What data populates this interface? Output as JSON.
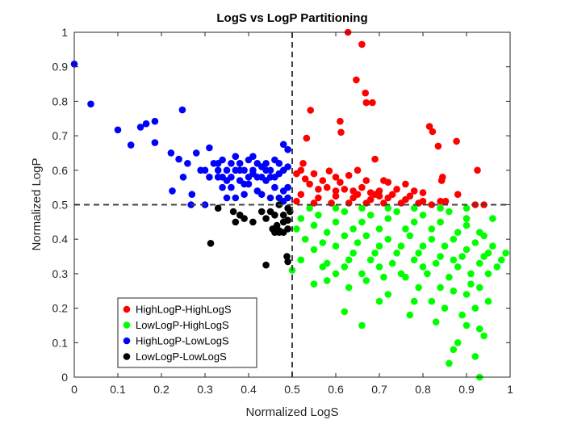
{
  "chart_data": {
    "type": "scatter",
    "title": "LogS vs LogP Partitioning",
    "xlabel": "Normalized LogS",
    "ylabel": "Normalized LogP",
    "xlim": [
      0,
      1
    ],
    "ylim": [
      0,
      1
    ],
    "xticks": [
      "0",
      "0.1",
      "0.2",
      "0.3",
      "0.4",
      "0.5",
      "0.6",
      "0.7",
      "0.8",
      "0.9",
      "1"
    ],
    "yticks": [
      "0",
      "0.1",
      "0.2",
      "0.3",
      "0.4",
      "0.5",
      "0.6",
      "0.7",
      "0.8",
      "0.9",
      "1"
    ],
    "grid": false,
    "thresholds": {
      "x": 0.5,
      "y": 0.5
    },
    "legend_position": "bottom-left",
    "series": [
      {
        "name": "HighLogP-HighLogS",
        "color": "#ff0000",
        "points": [
          [
            0.628,
            1.0
          ],
          [
            0.66,
            0.965
          ],
          [
            0.647,
            0.862
          ],
          [
            0.668,
            0.824
          ],
          [
            0.67,
            0.796
          ],
          [
            0.684,
            0.796
          ],
          [
            0.542,
            0.774
          ],
          [
            0.61,
            0.742
          ],
          [
            0.815,
            0.727
          ],
          [
            0.612,
            0.71
          ],
          [
            0.822,
            0.712
          ],
          [
            0.877,
            0.684
          ],
          [
            0.533,
            0.693
          ],
          [
            0.835,
            0.67
          ],
          [
            0.69,
            0.632
          ],
          [
            0.525,
            0.62
          ],
          [
            0.925,
            0.6
          ],
          [
            0.845,
            0.58
          ],
          [
            0.843,
            0.57
          ],
          [
            0.65,
            0.6
          ],
          [
            0.585,
            0.598
          ],
          [
            0.71,
            0.57
          ],
          [
            0.76,
            0.56
          ],
          [
            0.8,
            0.535
          ],
          [
            0.88,
            0.53
          ],
          [
            0.92,
            0.5
          ],
          [
            0.94,
            0.5
          ],
          [
            0.852,
            0.51
          ],
          [
            0.82,
            0.5
          ],
          [
            0.52,
            0.6
          ],
          [
            0.55,
            0.59
          ],
          [
            0.6,
            0.58
          ],
          [
            0.63,
            0.585
          ],
          [
            0.67,
            0.57
          ],
          [
            0.72,
            0.565
          ],
          [
            0.54,
            0.56
          ],
          [
            0.58,
            0.55
          ],
          [
            0.62,
            0.545
          ],
          [
            0.66,
            0.55
          ],
          [
            0.7,
            0.54
          ],
          [
            0.74,
            0.545
          ],
          [
            0.78,
            0.54
          ],
          [
            0.52,
            0.53
          ],
          [
            0.56,
            0.52
          ],
          [
            0.6,
            0.525
          ],
          [
            0.64,
            0.52
          ],
          [
            0.68,
            0.515
          ],
          [
            0.72,
            0.52
          ],
          [
            0.76,
            0.515
          ],
          [
            0.8,
            0.51
          ],
          [
            0.84,
            0.51
          ],
          [
            0.51,
            0.51
          ],
          [
            0.55,
            0.505
          ],
          [
            0.59,
            0.505
          ],
          [
            0.63,
            0.505
          ],
          [
            0.67,
            0.505
          ],
          [
            0.71,
            0.505
          ],
          [
            0.75,
            0.505
          ],
          [
            0.79,
            0.505
          ],
          [
            0.53,
            0.575
          ],
          [
            0.57,
            0.57
          ],
          [
            0.61,
            0.565
          ],
          [
            0.65,
            0.53
          ],
          [
            0.69,
            0.53
          ],
          [
            0.73,
            0.53
          ],
          [
            0.77,
            0.525
          ],
          [
            0.51,
            0.59
          ],
          [
            0.56,
            0.545
          ],
          [
            0.6,
            0.54
          ],
          [
            0.64,
            0.54
          ],
          [
            0.68,
            0.535
          ],
          [
            0.7,
            0.525
          ]
        ]
      },
      {
        "name": "LowLogP-HighLogS",
        "color": "#00ff00",
        "points": [
          [
            0.93,
            0.0
          ],
          [
            0.86,
            0.04
          ],
          [
            0.92,
            0.06
          ],
          [
            0.88,
            0.1
          ],
          [
            0.94,
            0.12
          ],
          [
            0.9,
            0.15
          ],
          [
            0.83,
            0.16
          ],
          [
            0.77,
            0.18
          ],
          [
            0.85,
            0.2
          ],
          [
            0.66,
            0.15
          ],
          [
            0.62,
            0.19
          ],
          [
            0.7,
            0.22
          ],
          [
            0.55,
            0.27
          ],
          [
            0.5,
            0.31
          ],
          [
            0.52,
            0.34
          ],
          [
            0.57,
            0.32
          ],
          [
            0.6,
            0.3
          ],
          [
            0.63,
            0.26
          ],
          [
            0.67,
            0.28
          ],
          [
            0.72,
            0.24
          ],
          [
            0.75,
            0.3
          ],
          [
            0.79,
            0.26
          ],
          [
            0.82,
            0.22
          ],
          [
            0.87,
            0.25
          ],
          [
            0.91,
            0.27
          ],
          [
            0.95,
            0.3
          ],
          [
            0.98,
            0.34
          ],
          [
            0.99,
            0.36
          ],
          [
            0.96,
            0.38
          ],
          [
            0.93,
            0.42
          ],
          [
            0.9,
            0.46
          ],
          [
            0.86,
            0.48
          ],
          [
            0.8,
            0.47
          ],
          [
            0.74,
            0.48
          ],
          [
            0.68,
            0.47
          ],
          [
            0.62,
            0.48
          ],
          [
            0.56,
            0.47
          ],
          [
            0.52,
            0.46
          ],
          [
            0.51,
            0.43
          ],
          [
            0.53,
            0.4
          ],
          [
            0.58,
            0.42
          ],
          [
            0.64,
            0.43
          ],
          [
            0.7,
            0.43
          ],
          [
            0.76,
            0.43
          ],
          [
            0.82,
            0.43
          ],
          [
            0.88,
            0.42
          ],
          [
            0.94,
            0.41
          ],
          [
            0.55,
            0.37
          ],
          [
            0.6,
            0.38
          ],
          [
            0.65,
            0.39
          ],
          [
            0.7,
            0.38
          ],
          [
            0.75,
            0.38
          ],
          [
            0.8,
            0.38
          ],
          [
            0.85,
            0.38
          ],
          [
            0.9,
            0.37
          ],
          [
            0.95,
            0.36
          ],
          [
            0.58,
            0.33
          ],
          [
            0.63,
            0.34
          ],
          [
            0.68,
            0.34
          ],
          [
            0.73,
            0.33
          ],
          [
            0.78,
            0.34
          ],
          [
            0.83,
            0.33
          ],
          [
            0.88,
            0.32
          ],
          [
            0.93,
            0.33
          ],
          [
            0.66,
            0.3
          ],
          [
            0.71,
            0.29
          ],
          [
            0.76,
            0.29
          ],
          [
            0.81,
            0.3
          ],
          [
            0.86,
            0.29
          ],
          [
            0.91,
            0.3
          ],
          [
            0.78,
            0.22
          ],
          [
            0.84,
            0.26
          ],
          [
            0.9,
            0.24
          ],
          [
            0.92,
            0.2
          ],
          [
            0.55,
            0.44
          ],
          [
            0.6,
            0.45
          ],
          [
            0.66,
            0.45
          ],
          [
            0.72,
            0.46
          ],
          [
            0.78,
            0.45
          ],
          [
            0.84,
            0.45
          ],
          [
            0.9,
            0.44
          ],
          [
            0.57,
            0.39
          ],
          [
            0.62,
            0.41
          ],
          [
            0.67,
            0.41
          ],
          [
            0.72,
            0.4
          ],
          [
            0.77,
            0.41
          ],
          [
            0.82,
            0.4
          ],
          [
            0.87,
            0.4
          ],
          [
            0.92,
            0.39
          ],
          [
            0.54,
            0.49
          ],
          [
            0.6,
            0.49
          ],
          [
            0.66,
            0.49
          ],
          [
            0.72,
            0.49
          ],
          [
            0.78,
            0.49
          ],
          [
            0.84,
            0.49
          ],
          [
            0.9,
            0.49
          ],
          [
            0.96,
            0.46
          ],
          [
            0.97,
            0.32
          ],
          [
            0.58,
            0.28
          ],
          [
            0.64,
            0.36
          ],
          [
            0.69,
            0.36
          ],
          [
            0.74,
            0.36
          ],
          [
            0.79,
            0.36
          ],
          [
            0.84,
            0.35
          ],
          [
            0.89,
            0.35
          ],
          [
            0.94,
            0.35
          ],
          [
            0.62,
            0.32
          ],
          [
            0.7,
            0.32
          ],
          [
            0.8,
            0.32
          ],
          [
            0.87,
            0.34
          ],
          [
            0.93,
            0.26
          ],
          [
            0.95,
            0.22
          ],
          [
            0.89,
            0.18
          ],
          [
            0.87,
            0.08
          ],
          [
            0.93,
            0.14
          ]
        ]
      },
      {
        "name": "HighLogP-LowLogS",
        "color": "#0000ff",
        "points": [
          [
            0.0,
            0.908
          ],
          [
            0.038,
            0.792
          ],
          [
            0.1,
            0.717
          ],
          [
            0.13,
            0.673
          ],
          [
            0.152,
            0.725
          ],
          [
            0.165,
            0.735
          ],
          [
            0.185,
            0.742
          ],
          [
            0.185,
            0.68
          ],
          [
            0.248,
            0.775
          ],
          [
            0.222,
            0.65
          ],
          [
            0.24,
            0.632
          ],
          [
            0.25,
            0.58
          ],
          [
            0.225,
            0.54
          ],
          [
            0.268,
            0.5
          ],
          [
            0.3,
            0.6
          ],
          [
            0.31,
            0.665
          ],
          [
            0.33,
            0.58
          ],
          [
            0.34,
            0.63
          ],
          [
            0.35,
            0.6
          ],
          [
            0.36,
            0.55
          ],
          [
            0.37,
            0.52
          ],
          [
            0.38,
            0.6
          ],
          [
            0.39,
            0.56
          ],
          [
            0.4,
            0.63
          ],
          [
            0.41,
            0.59
          ],
          [
            0.42,
            0.54
          ],
          [
            0.43,
            0.61
          ],
          [
            0.44,
            0.57
          ],
          [
            0.45,
            0.52
          ],
          [
            0.46,
            0.63
          ],
          [
            0.47,
            0.59
          ],
          [
            0.48,
            0.54
          ],
          [
            0.49,
            0.61
          ],
          [
            0.49,
            0.66
          ],
          [
            0.48,
            0.675
          ],
          [
            0.46,
            0.55
          ],
          [
            0.45,
            0.58
          ],
          [
            0.44,
            0.6
          ],
          [
            0.43,
            0.53
          ],
          [
            0.42,
            0.58
          ],
          [
            0.41,
            0.64
          ],
          [
            0.4,
            0.56
          ],
          [
            0.39,
            0.53
          ],
          [
            0.38,
            0.57
          ],
          [
            0.37,
            0.64
          ],
          [
            0.36,
            0.58
          ],
          [
            0.35,
            0.52
          ],
          [
            0.34,
            0.55
          ],
          [
            0.33,
            0.6
          ],
          [
            0.32,
            0.62
          ],
          [
            0.31,
            0.58
          ],
          [
            0.3,
            0.5
          ],
          [
            0.29,
            0.6
          ],
          [
            0.28,
            0.65
          ],
          [
            0.27,
            0.53
          ],
          [
            0.26,
            0.62
          ],
          [
            0.49,
            0.55
          ],
          [
            0.48,
            0.6
          ],
          [
            0.47,
            0.62
          ],
          [
            0.46,
            0.58
          ],
          [
            0.45,
            0.6
          ],
          [
            0.44,
            0.62
          ],
          [
            0.43,
            0.58
          ],
          [
            0.42,
            0.62
          ],
          [
            0.41,
            0.6
          ],
          [
            0.4,
            0.58
          ],
          [
            0.39,
            0.6
          ],
          [
            0.38,
            0.62
          ],
          [
            0.37,
            0.6
          ],
          [
            0.36,
            0.62
          ],
          [
            0.35,
            0.57
          ],
          [
            0.34,
            0.58
          ],
          [
            0.33,
            0.62
          ],
          [
            0.49,
            0.52
          ],
          [
            0.48,
            0.51
          ],
          [
            0.47,
            0.52
          ]
        ]
      },
      {
        "name": "LowLogP-LowLogS",
        "color": "#000000",
        "points": [
          [
            0.313,
            0.388
          ],
          [
            0.33,
            0.49
          ],
          [
            0.365,
            0.48
          ],
          [
            0.38,
            0.47
          ],
          [
            0.37,
            0.45
          ],
          [
            0.39,
            0.46
          ],
          [
            0.41,
            0.45
          ],
          [
            0.43,
            0.48
          ],
          [
            0.44,
            0.46
          ],
          [
            0.45,
            0.48
          ],
          [
            0.46,
            0.47
          ],
          [
            0.47,
            0.5
          ],
          [
            0.48,
            0.47
          ],
          [
            0.49,
            0.49
          ],
          [
            0.49,
            0.455
          ],
          [
            0.48,
            0.45
          ],
          [
            0.47,
            0.425
          ],
          [
            0.48,
            0.42
          ],
          [
            0.49,
            0.43
          ],
          [
            0.46,
            0.42
          ],
          [
            0.455,
            0.43
          ],
          [
            0.44,
            0.325
          ],
          [
            0.49,
            0.335
          ],
          [
            0.488,
            0.35
          ],
          [
            0.47,
            0.42
          ],
          [
            0.465,
            0.44
          ],
          [
            0.495,
            0.48
          ]
        ]
      }
    ]
  }
}
